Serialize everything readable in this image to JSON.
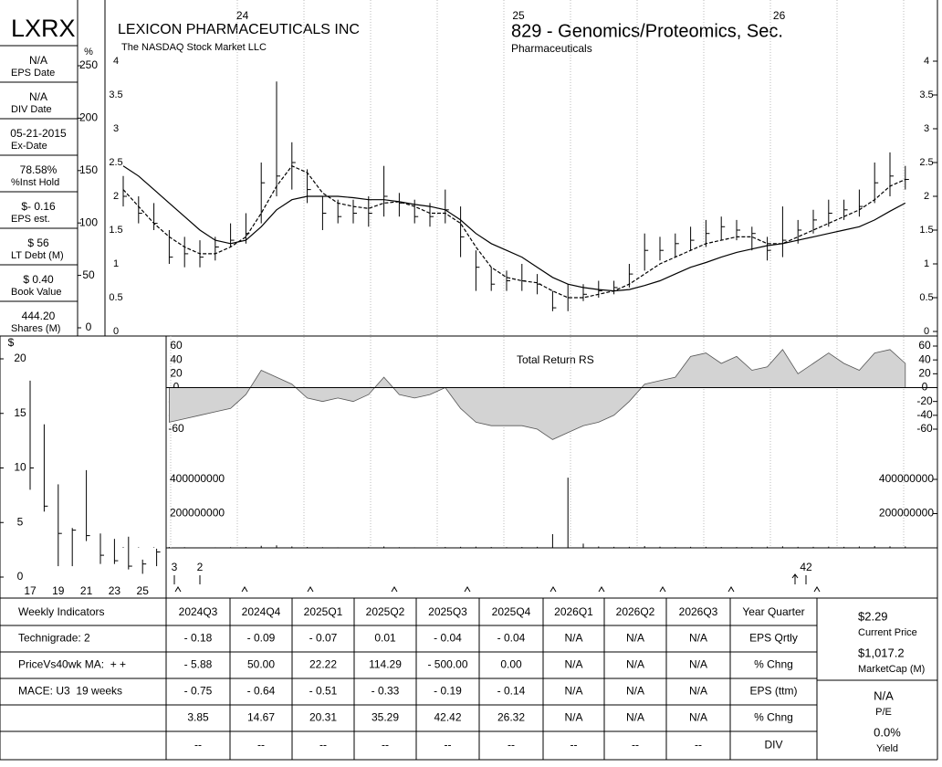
{
  "header": {
    "ticker": "LXRX",
    "company": "LEXICON PHARMACEUTICALS INC",
    "exchange": "The NASDAQ Stock Market LLC",
    "group": "829 - Genomics/Proteomics, Sec.",
    "sector": "Pharmaceuticals"
  },
  "stats": [
    {
      "value": "N/A",
      "label": "EPS Date"
    },
    {
      "value": "N/A",
      "label": "DIV Date"
    },
    {
      "value": "05-21-2015",
      "label": "Ex-Date"
    },
    {
      "value": "78.58%",
      "label": "%Inst Hold"
    },
    {
      "value": "$- 0.16",
      "label": "EPS est."
    },
    {
      "value": "$ 56",
      "label": "LT Debt (M)"
    },
    {
      "value": "$ 0.40",
      "label": "Book Value"
    },
    {
      "value": "444.20",
      "label": "Shares (M)"
    }
  ],
  "chart_data": [
    {
      "type": "hlc",
      "categories": [
        null,
        null,
        null,
        null,
        null,
        null,
        null,
        "24",
        null,
        null,
        null,
        null,
        null,
        null,
        null,
        null,
        null,
        null,
        null,
        null,
        null,
        null,
        null,
        null,
        null,
        "25",
        null,
        null,
        null,
        null,
        null,
        null,
        null,
        null,
        null,
        null,
        null,
        null,
        null,
        null,
        null,
        null,
        "26",
        null,
        null,
        null,
        null,
        null,
        null,
        null,
        null,
        null
      ],
      "high": [
        2.3,
        2.0,
        1.9,
        1.5,
        1.4,
        1.35,
        1.4,
        1.6,
        1.75,
        2.5,
        3.7,
        2.8,
        2.4,
        2.0,
        1.95,
        1.95,
        2.0,
        2.45,
        2.05,
        1.95,
        1.9,
        2.1,
        1.85,
        1.2,
        0.95,
        0.9,
        1.0,
        0.85,
        0.6,
        0.7,
        0.7,
        0.75,
        0.75,
        1.0,
        1.45,
        1.4,
        1.45,
        1.55,
        1.65,
        1.7,
        1.65,
        1.55,
        1.4,
        1.85,
        1.65,
        1.8,
        1.95,
        1.95,
        2.1,
        2.5,
        2.65,
        2.45
      ],
      "low": [
        1.85,
        1.6,
        1.5,
        1.0,
        0.95,
        0.95,
        1.05,
        1.25,
        1.3,
        1.6,
        2.0,
        2.1,
        1.9,
        1.5,
        1.6,
        1.6,
        1.55,
        1.7,
        1.7,
        1.6,
        1.55,
        1.6,
        1.1,
        0.6,
        0.6,
        0.6,
        0.6,
        0.55,
        0.3,
        0.3,
        0.45,
        0.5,
        0.55,
        0.65,
        0.9,
        1.05,
        1.1,
        1.2,
        1.25,
        1.35,
        1.35,
        1.2,
        1.05,
        1.1,
        1.3,
        1.45,
        1.55,
        1.65,
        1.7,
        1.9,
        2.0,
        2.1
      ],
      "close": [
        2.0,
        1.75,
        1.6,
        1.1,
        1.15,
        1.1,
        1.25,
        1.35,
        1.45,
        2.2,
        2.3,
        2.5,
        2.1,
        1.75,
        1.7,
        1.75,
        1.75,
        2.0,
        1.9,
        1.7,
        1.7,
        1.8,
        1.4,
        0.95,
        0.7,
        0.75,
        0.75,
        0.7,
        0.35,
        0.5,
        0.55,
        0.6,
        0.65,
        0.85,
        1.2,
        1.2,
        1.3,
        1.35,
        1.45,
        1.55,
        1.5,
        1.45,
        1.2,
        1.35,
        1.5,
        1.65,
        1.75,
        1.8,
        1.85,
        2.2,
        2.3,
        2.25
      ],
      "lines": [
        {
          "style": "dashed",
          "color": "#000000",
          "values": [
            2.1,
            1.85,
            1.6,
            1.4,
            1.25,
            1.15,
            1.15,
            1.25,
            1.4,
            1.75,
            2.15,
            2.45,
            2.35,
            2.05,
            1.9,
            1.85,
            1.82,
            1.9,
            1.92,
            1.85,
            1.75,
            1.75,
            1.6,
            1.25,
            0.95,
            0.8,
            0.75,
            0.72,
            0.6,
            0.5,
            0.5,
            0.55,
            0.6,
            0.7,
            0.85,
            1.0,
            1.1,
            1.2,
            1.3,
            1.35,
            1.4,
            1.4,
            1.3,
            1.3,
            1.4,
            1.5,
            1.6,
            1.7,
            1.8,
            1.95,
            2.15,
            2.25
          ]
        },
        {
          "style": "solid",
          "color": "#000000",
          "values": [
            2.45,
            2.3,
            2.1,
            1.9,
            1.7,
            1.5,
            1.35,
            1.3,
            1.35,
            1.55,
            1.8,
            1.95,
            2.0,
            2.0,
            2.0,
            1.98,
            1.95,
            1.95,
            1.92,
            1.88,
            1.85,
            1.8,
            1.65,
            1.45,
            1.3,
            1.2,
            1.1,
            0.95,
            0.8,
            0.7,
            0.65,
            0.62,
            0.6,
            0.62,
            0.68,
            0.75,
            0.85,
            0.95,
            1.02,
            1.1,
            1.17,
            1.22,
            1.27,
            1.3,
            1.35,
            1.4,
            1.45,
            1.5,
            1.55,
            1.65,
            1.78,
            1.9
          ]
        }
      ],
      "ylim": [
        0,
        4
      ],
      "yticks": [
        0,
        0.5,
        1,
        1.5,
        2,
        2.5,
        3,
        3.5,
        4
      ],
      "y2label": "%",
      "y2lim": [
        0,
        250
      ],
      "y2ticks": [
        0,
        50,
        100,
        150,
        200,
        250
      ]
    },
    {
      "type": "area",
      "title": "Total Return RS",
      "color": "#d3d3d3",
      "values": [
        null,
        null,
        null,
        -50,
        -45,
        -40,
        -35,
        -30,
        -10,
        25,
        15,
        5,
        -15,
        -20,
        -15,
        -20,
        -10,
        15,
        -10,
        -15,
        -10,
        0,
        -30,
        -50,
        -55,
        -55,
        -55,
        -60,
        -75,
        -65,
        -55,
        -50,
        -40,
        -20,
        5,
        10,
        15,
        45,
        50,
        35,
        45,
        25,
        30,
        55,
        20,
        35,
        50,
        35,
        25,
        50,
        55,
        35
      ],
      "ylim": [
        -60,
        60
      ],
      "yticks": [
        -60,
        -40,
        -20,
        0,
        20,
        40,
        60
      ]
    },
    {
      "type": "volume",
      "color": "#000000",
      "values": [
        4000000,
        3000000,
        3000000,
        5000000,
        4000000,
        3000000,
        3000000,
        4000000,
        5000000,
        12000000,
        15000000,
        8000000,
        5000000,
        4000000,
        3000000,
        3000000,
        4000000,
        8000000,
        4000000,
        3000000,
        3000000,
        5000000,
        6000000,
        7000000,
        5000000,
        4000000,
        5000000,
        6000000,
        80000000,
        410000000,
        25000000,
        8000000,
        6000000,
        6000000,
        10000000,
        7000000,
        5000000,
        6000000,
        6000000,
        5000000,
        5000000,
        5000000,
        7000000,
        9000000,
        6000000,
        6000000,
        7000000,
        6000000,
        8000000,
        10000000,
        9000000,
        8000000
      ],
      "ylim": [
        0,
        400000000
      ],
      "yticks": [
        200000000,
        400000000
      ]
    },
    {
      "type": "hlc",
      "categories": [
        "17",
        null,
        "19",
        null,
        "21",
        null,
        "23",
        null,
        "25",
        null
      ],
      "high": [
        18,
        14,
        8.5,
        4.5,
        9.8,
        4,
        3.5,
        3.7,
        1.6,
        2.6
      ],
      "low": [
        8,
        6,
        1,
        1,
        3.3,
        1.2,
        1.2,
        0.7,
        0.3,
        1
      ],
      "close": [
        10,
        6.5,
        4,
        4.3,
        3.8,
        2,
        1.5,
        1,
        1.2,
        2.3
      ],
      "ylabel": "$",
      "ylim": [
        0,
        20
      ],
      "yticks": [
        0,
        5,
        10,
        15,
        20
      ]
    }
  ],
  "markers": [
    "3",
    "2",
    "42"
  ],
  "table": {
    "header": [
      "Weekly Indicators",
      "2024Q3",
      "2024Q4",
      "2025Q1",
      "2025Q2",
      "2025Q3",
      "2025Q4",
      "2026Q1",
      "2026Q2",
      "2026Q3",
      "Year Quarter"
    ],
    "rows": [
      [
        "Technigrade: 2",
        "- 0.18",
        "- 0.09",
        "- 0.07",
        "0.01",
        "- 0.04",
        "- 0.04",
        "N/A",
        "N/A",
        "N/A",
        "EPS Qrtly"
      ],
      [
        "PriceVs40wk MA:  + +",
        "- 5.88",
        "50.00",
        "22.22",
        "114.29",
        "- 500.00",
        "0.00",
        "N/A",
        "N/A",
        "N/A",
        "% Chng"
      ],
      [
        "MACE: U3  19 weeks",
        "- 0.75",
        "- 0.64",
        "- 0.51",
        "- 0.33",
        "- 0.19",
        "- 0.14",
        "N/A",
        "N/A",
        "N/A",
        "EPS (ttm)"
      ],
      [
        null,
        "3.85",
        "14.67",
        "20.31",
        "35.29",
        "42.42",
        "26.32",
        "N/A",
        "N/A",
        "N/A",
        "% Chng"
      ],
      [
        null,
        "--",
        "--",
        "--",
        "--",
        "--",
        "--",
        "--",
        "--",
        "--",
        "DIV"
      ]
    ]
  },
  "summary": [
    {
      "value": "$2.29",
      "label": "Current Price"
    },
    {
      "value": "$1,017.2",
      "label": "MarketCap (M)"
    },
    {
      "value": "N/A",
      "label": "P/E"
    },
    {
      "value": "0.0%",
      "label": "Yield"
    }
  ]
}
